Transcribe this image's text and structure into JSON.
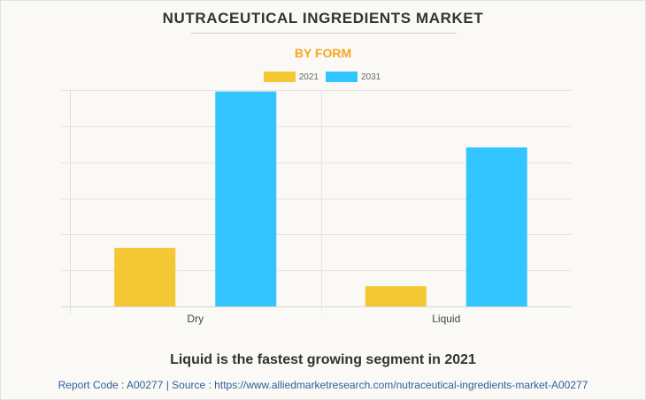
{
  "header": {
    "title": "NUTRACEUTICAL INGREDIENTS MARKET",
    "subtitle": "BY FORM"
  },
  "colors": {
    "series_2021": "#f4c832",
    "series_2031": "#33c5ff",
    "subtitle": "#f5a623",
    "source_link": "#2e5f9e"
  },
  "chart_data": {
    "type": "bar",
    "title": "NUTRACEUTICAL INGREDIENTS MARKET",
    "subtitle": "BY FORM",
    "categories": [
      "Dry",
      "Liquid"
    ],
    "series": [
      {
        "name": "2021",
        "values": [
          1.62,
          0.56
        ]
      },
      {
        "name": "2031",
        "values": [
          5.96,
          4.41
        ]
      }
    ],
    "value_note": "No y-axis tick labels shown; values in gridline units (6 gridline intervals).",
    "xlabel": "",
    "ylabel": "",
    "ylim": [
      0,
      6
    ],
    "yticks_count": 6,
    "grid": true,
    "legend": "top-center"
  },
  "footer": {
    "insight": "Liquid is the fastest growing segment in 2021",
    "source": "Report Code : A00277  |  Source : https://www.alliedmarketresearch.com/nutraceutical-ingredients-market-A00277"
  }
}
